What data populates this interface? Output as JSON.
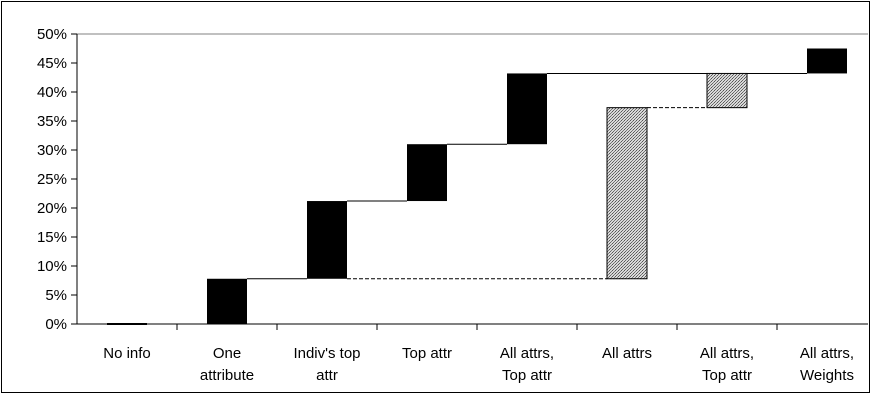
{
  "chart_data": {
    "type": "bar",
    "subtype": "waterfall",
    "categories": [
      "No info",
      "One attribute",
      "Indiv's top attr",
      "Top attr",
      "All attrs, Top attr",
      "All attrs",
      "All attrs, Top attr",
      "All attrs, Weights"
    ],
    "category_lines": [
      [
        "No info"
      ],
      [
        "One",
        "attribute"
      ],
      [
        "Indiv's top",
        "attr"
      ],
      [
        "Top attr"
      ],
      [
        "All attrs,",
        "Top attr"
      ],
      [
        "All attrs"
      ],
      [
        "All attrs,",
        "Top attr"
      ],
      [
        "All attrs,",
        "Weights"
      ]
    ],
    "bars": [
      {
        "start": 0.0,
        "end": 0.0,
        "fill": "solid"
      },
      {
        "start": 0.0,
        "end": 7.8,
        "fill": "solid"
      },
      {
        "start": 7.8,
        "end": 21.2,
        "fill": "solid"
      },
      {
        "start": 21.2,
        "end": 31.0,
        "fill": "solid"
      },
      {
        "start": 31.0,
        "end": 43.2,
        "fill": "solid"
      },
      {
        "start": 7.8,
        "end": 37.3,
        "fill": "hatched"
      },
      {
        "start": 37.3,
        "end": 43.2,
        "fill": "hatched"
      },
      {
        "start": 43.2,
        "end": 47.5,
        "fill": "solid"
      }
    ],
    "connectors": [
      {
        "from": 1,
        "to": 2,
        "value": 7.8,
        "style": "solid"
      },
      {
        "from": 2,
        "to": 3,
        "value": 21.2,
        "style": "solid"
      },
      {
        "from": 3,
        "to": 4,
        "value": 31.0,
        "style": "solid"
      },
      {
        "from": 4,
        "to": 7,
        "value": 43.2,
        "style": "solid"
      },
      {
        "from": 2,
        "to": 5,
        "value": 7.8,
        "style": "dashed"
      },
      {
        "from": 5,
        "to": 6,
        "value": 37.3,
        "style": "dashed"
      }
    ],
    "yticks": [
      "0%",
      "5%",
      "10%",
      "15%",
      "20%",
      "25%",
      "30%",
      "35%",
      "40%",
      "45%",
      "50%"
    ],
    "ylim": [
      0,
      50
    ],
    "grid": "top line only",
    "legend": "none",
    "colors": {
      "solid": "#000000",
      "hatched": "#c0c0c0",
      "axis": "#000000",
      "background": "#ffffff"
    }
  }
}
